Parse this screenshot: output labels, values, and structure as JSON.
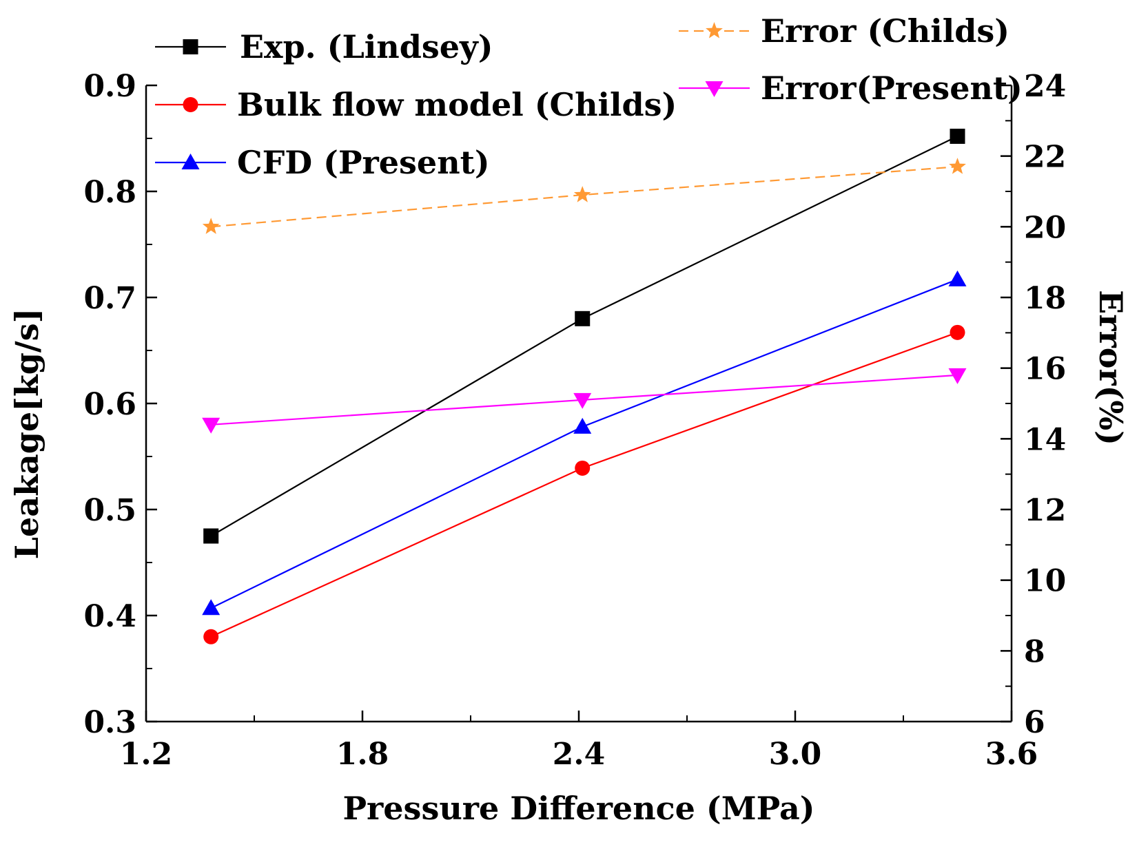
{
  "chart_data": {
    "type": "line",
    "xlabel": "Pressure Difference (MPa)",
    "ylabel": "Leakage[kg/s]",
    "y2label": "Error(%)",
    "xlim": [
      1.2,
      3.6
    ],
    "ylim": [
      0.3,
      0.9
    ],
    "y2lim": [
      6,
      24
    ],
    "x_ticks": [
      1.2,
      1.8,
      2.4,
      3.0,
      3.6
    ],
    "x_tick_labels": [
      "1.2",
      "1.8",
      "2.4",
      "3.0",
      "3.6"
    ],
    "y_ticks": [
      0.3,
      0.4,
      0.5,
      0.6,
      0.7,
      0.8,
      0.9
    ],
    "y_tick_labels": [
      "0.3",
      "0.4",
      "0.5",
      "0.6",
      "0.7",
      "0.8",
      "0.9"
    ],
    "y2_ticks": [
      6,
      8,
      10,
      12,
      14,
      16,
      18,
      20,
      22,
      24
    ],
    "y2_tick_labels": [
      "6",
      "8",
      "10",
      "12",
      "14",
      "16",
      "18",
      "20",
      "22",
      "24"
    ],
    "grid": false,
    "series": [
      {
        "name": "Exp. (Lindsey)",
        "axis": "left",
        "color": "#000000",
        "marker": "square",
        "dashed": false,
        "x": [
          1.38,
          2.41,
          3.45
        ],
        "y": [
          0.475,
          0.68,
          0.852
        ]
      },
      {
        "name": "Bulk flow model (Childs)",
        "axis": "left",
        "color": "#ff0000",
        "marker": "circle",
        "dashed": false,
        "x": [
          1.38,
          2.41,
          3.45
        ],
        "y": [
          0.38,
          0.539,
          0.667
        ]
      },
      {
        "name": "CFD (Present)",
        "axis": "left",
        "color": "#0000ff",
        "marker": "triangle-up",
        "dashed": false,
        "x": [
          1.38,
          2.41,
          3.45
        ],
        "y": [
          0.407,
          0.578,
          0.717
        ]
      },
      {
        "name": "Error (Childs)",
        "axis": "right",
        "color": "#ff9933",
        "marker": "star",
        "dashed": true,
        "x": [
          1.38,
          2.41,
          3.45
        ],
        "y": [
          20.0,
          20.9,
          21.7
        ]
      },
      {
        "name": "Error(Present)",
        "axis": "right",
        "color": "#ff00ff",
        "marker": "triangle-down",
        "dashed": false,
        "x": [
          1.38,
          2.41,
          3.45
        ],
        "y": [
          14.4,
          15.1,
          15.8
        ]
      }
    ]
  }
}
